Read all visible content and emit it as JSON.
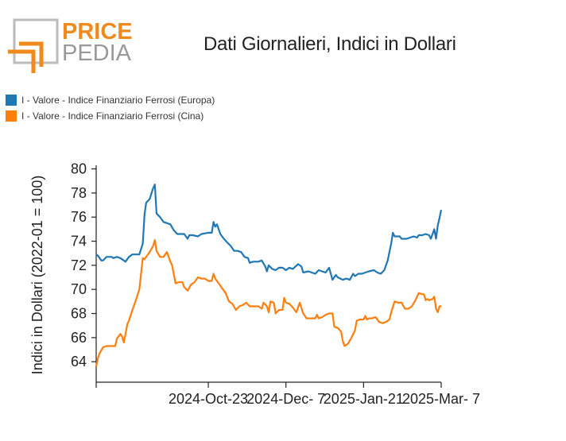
{
  "brand": {
    "top": "PRICE",
    "bottom": "PEDIA",
    "accent": "#f08a1c",
    "grey": "#999999"
  },
  "chart_data": {
    "type": "line",
    "title": "Dati Giornalieri, Indici in Dollari",
    "xlabel": "",
    "ylabel": "Indici in Dollari (2022-01 = 100)",
    "ylim": [
      62.3,
      80.3
    ],
    "yticks": [
      64,
      66,
      68,
      70,
      72,
      74,
      76,
      78,
      80
    ],
    "xlim": [
      "2024-08-19",
      "2025-03-07"
    ],
    "xticks": [
      {
        "date": "2024-10-23",
        "label": "2024-Oct-23"
      },
      {
        "date": "2024-12-07",
        "label": "2024-Dec- 7"
      },
      {
        "date": "2025-01-21",
        "label": "2025-Jan-21"
      },
      {
        "date": "2025-03-07",
        "label": "2025-Mar- 7"
      }
    ],
    "legend_position": "top-left",
    "series": [
      {
        "name": "I - Valore - Indice Finanziario Ferrosi (Europa)",
        "color": "#1f77b4",
        "points": [
          [
            "2024-08-19",
            72.9
          ],
          [
            "2024-08-20",
            72.8
          ],
          [
            "2024-08-22",
            72.4
          ],
          [
            "2024-08-23",
            72.4
          ],
          [
            "2024-08-25",
            72.7
          ],
          [
            "2024-08-28",
            72.7
          ],
          [
            "2024-08-29",
            72.6
          ],
          [
            "2024-08-31",
            72.7
          ],
          [
            "2024-09-02",
            72.6
          ],
          [
            "2024-09-05",
            72.3
          ],
          [
            "2024-09-07",
            72.7
          ],
          [
            "2024-09-09",
            72.9
          ],
          [
            "2024-09-13",
            72.9
          ],
          [
            "2024-09-15",
            73.8
          ],
          [
            "2024-09-16",
            76.2
          ],
          [
            "2024-09-17",
            77.2
          ],
          [
            "2024-09-19",
            77.5
          ],
          [
            "2024-09-21",
            78.4
          ],
          [
            "2024-09-22",
            78.7
          ],
          [
            "2024-09-23",
            76.3
          ],
          [
            "2024-09-25",
            76.0
          ],
          [
            "2024-09-27",
            75.6
          ],
          [
            "2024-09-29",
            75.5
          ],
          [
            "2024-10-01",
            75.4
          ],
          [
            "2024-10-03",
            74.9
          ],
          [
            "2024-10-05",
            74.6
          ],
          [
            "2024-10-07",
            74.6
          ],
          [
            "2024-10-09",
            74.6
          ],
          [
            "2024-10-11",
            74.2
          ],
          [
            "2024-10-12",
            74.5
          ],
          [
            "2024-10-14",
            74.5
          ],
          [
            "2024-10-17",
            74.4
          ],
          [
            "2024-10-19",
            74.6
          ],
          [
            "2024-10-23",
            74.7
          ],
          [
            "2024-10-25",
            74.7
          ],
          [
            "2024-10-26",
            75.6
          ],
          [
            "2024-10-27",
            75.2
          ],
          [
            "2024-10-28",
            75.4
          ],
          [
            "2024-10-30",
            74.6
          ],
          [
            "2024-11-01",
            74.2
          ],
          [
            "2024-11-03",
            73.9
          ],
          [
            "2024-11-05",
            73.6
          ],
          [
            "2024-11-07",
            73.2
          ],
          [
            "2024-11-09",
            73.2
          ],
          [
            "2024-11-11",
            73.1
          ],
          [
            "2024-11-13",
            72.7
          ],
          [
            "2024-11-15",
            72.6
          ],
          [
            "2024-11-16",
            72.2
          ],
          [
            "2024-11-18",
            72.3
          ],
          [
            "2024-11-21",
            72.3
          ],
          [
            "2024-11-23",
            72.4
          ],
          [
            "2024-11-25",
            71.9
          ],
          [
            "2024-11-26",
            71.5
          ],
          [
            "2024-11-27",
            72.0
          ],
          [
            "2024-11-29",
            71.7
          ],
          [
            "2024-12-01",
            71.6
          ],
          [
            "2024-12-03",
            71.8
          ],
          [
            "2024-12-05",
            71.8
          ],
          [
            "2024-12-07",
            71.6
          ],
          [
            "2024-12-09",
            71.8
          ],
          [
            "2024-12-11",
            71.7
          ],
          [
            "2024-12-14",
            72.1
          ],
          [
            "2024-12-16",
            71.9
          ],
          [
            "2024-12-17",
            71.4
          ],
          [
            "2024-12-20",
            71.5
          ],
          [
            "2024-12-22",
            71.4
          ],
          [
            "2024-12-24",
            71.3
          ],
          [
            "2024-12-26",
            71.6
          ],
          [
            "2024-12-28",
            71.5
          ],
          [
            "2024-12-30",
            71.4
          ],
          [
            "2025-01-01",
            71.8
          ],
          [
            "2025-01-03",
            70.8
          ],
          [
            "2025-01-05",
            71.2
          ],
          [
            "2025-01-06",
            71.0
          ],
          [
            "2025-01-09",
            70.8
          ],
          [
            "2025-01-11",
            70.9
          ],
          [
            "2025-01-13",
            70.8
          ],
          [
            "2025-01-15",
            71.3
          ],
          [
            "2025-01-16",
            71.1
          ],
          [
            "2025-01-18",
            71.3
          ],
          [
            "2025-01-20",
            71.3
          ],
          [
            "2025-01-22",
            71.4
          ],
          [
            "2025-01-24",
            71.5
          ],
          [
            "2025-01-27",
            71.6
          ],
          [
            "2025-01-29",
            71.4
          ],
          [
            "2025-01-31",
            71.3
          ],
          [
            "2025-02-02",
            71.6
          ],
          [
            "2025-02-04",
            72.4
          ],
          [
            "2025-02-06",
            73.8
          ],
          [
            "2025-02-07",
            74.7
          ],
          [
            "2025-02-08",
            74.4
          ],
          [
            "2025-02-11",
            74.4
          ],
          [
            "2025-02-12",
            74.2
          ],
          [
            "2025-02-15",
            74.2
          ],
          [
            "2025-02-17",
            74.3
          ],
          [
            "2025-02-19",
            74.4
          ],
          [
            "2025-02-21",
            74.3
          ],
          [
            "2025-02-22",
            74.5
          ],
          [
            "2025-02-24",
            74.5
          ],
          [
            "2025-02-26",
            74.6
          ],
          [
            "2025-02-28",
            74.5
          ],
          [
            "2025-03-01",
            74.2
          ],
          [
            "2025-03-03",
            75.0
          ],
          [
            "2025-03-04",
            74.2
          ],
          [
            "2025-03-05",
            75.3
          ],
          [
            "2025-03-06",
            75.9
          ],
          [
            "2025-03-07",
            76.6
          ]
        ]
      },
      {
        "name": "I - Valore - Indice Finanziario Ferrosi (Cina)",
        "color": "#ff7f0e",
        "points": [
          [
            "2024-08-19",
            63.6
          ],
          [
            "2024-08-20",
            64.3
          ],
          [
            "2024-08-21",
            64.7
          ],
          [
            "2024-08-23",
            65.2
          ],
          [
            "2024-08-25",
            65.3
          ],
          [
            "2024-08-28",
            65.3
          ],
          [
            "2024-08-30",
            65.3
          ],
          [
            "2024-08-31",
            65.9
          ],
          [
            "2024-09-02",
            66.3
          ],
          [
            "2024-09-03",
            66.1
          ],
          [
            "2024-09-04",
            65.6
          ],
          [
            "2024-09-05",
            66.3
          ],
          [
            "2024-09-06",
            67.1
          ],
          [
            "2024-09-07",
            67.4
          ],
          [
            "2024-09-09",
            68.3
          ],
          [
            "2024-09-11",
            69.1
          ],
          [
            "2024-09-13",
            70.0
          ],
          [
            "2024-09-15",
            72.6
          ],
          [
            "2024-09-16",
            72.5
          ],
          [
            "2024-09-17",
            72.7
          ],
          [
            "2024-09-19",
            73.1
          ],
          [
            "2024-09-21",
            73.6
          ],
          [
            "2024-09-22",
            74.1
          ],
          [
            "2024-09-23",
            73.2
          ],
          [
            "2024-09-25",
            72.7
          ],
          [
            "2024-09-27",
            72.7
          ],
          [
            "2024-09-29",
            73.1
          ],
          [
            "2024-10-01",
            72.3
          ],
          [
            "2024-10-02",
            72.0
          ],
          [
            "2024-10-04",
            70.5
          ],
          [
            "2024-10-06",
            70.6
          ],
          [
            "2024-10-08",
            70.6
          ],
          [
            "2024-10-09",
            70.2
          ],
          [
            "2024-10-11",
            69.9
          ],
          [
            "2024-10-13",
            70.4
          ],
          [
            "2024-10-15",
            70.6
          ],
          [
            "2024-10-17",
            71.0
          ],
          [
            "2024-10-19",
            70.9
          ],
          [
            "2024-10-21",
            70.9
          ],
          [
            "2024-10-23",
            70.7
          ],
          [
            "2024-10-25",
            70.7
          ],
          [
            "2024-10-26",
            71.3
          ],
          [
            "2024-10-27",
            70.9
          ],
          [
            "2024-10-29",
            70.5
          ],
          [
            "2024-10-31",
            70.1
          ],
          [
            "2024-11-02",
            69.7
          ],
          [
            "2024-11-04",
            69.0
          ],
          [
            "2024-11-06",
            68.8
          ],
          [
            "2024-11-08",
            68.3
          ],
          [
            "2024-11-10",
            68.6
          ],
          [
            "2024-11-12",
            68.7
          ],
          [
            "2024-11-14",
            68.9
          ],
          [
            "2024-11-16",
            68.6
          ],
          [
            "2024-11-18",
            68.6
          ],
          [
            "2024-11-21",
            68.6
          ],
          [
            "2024-11-23",
            68.4
          ],
          [
            "2024-11-24",
            68.9
          ],
          [
            "2024-11-26",
            68.6
          ],
          [
            "2024-11-27",
            68.1
          ],
          [
            "2024-11-28",
            69.0
          ],
          [
            "2024-11-30",
            68.9
          ],
          [
            "2024-12-01",
            68.0
          ],
          [
            "2024-12-03",
            68.3
          ],
          [
            "2024-12-05",
            68.3
          ],
          [
            "2024-12-06",
            69.3
          ],
          [
            "2024-12-07",
            68.9
          ],
          [
            "2024-12-09",
            68.8
          ],
          [
            "2024-12-11",
            68.5
          ],
          [
            "2024-12-13",
            68.1
          ],
          [
            "2024-12-15",
            68.9
          ],
          [
            "2024-12-17",
            68.0
          ],
          [
            "2024-12-19",
            67.6
          ],
          [
            "2024-12-21",
            67.6
          ],
          [
            "2024-12-24",
            67.6
          ],
          [
            "2024-12-25",
            67.9
          ],
          [
            "2024-12-26",
            67.6
          ],
          [
            "2024-12-28",
            67.7
          ],
          [
            "2024-12-30",
            67.9
          ],
          [
            "2025-01-01",
            68.0
          ],
          [
            "2025-01-03",
            68.0
          ],
          [
            "2025-01-04",
            66.9
          ],
          [
            "2025-01-06",
            66.8
          ],
          [
            "2025-01-08",
            66.5
          ],
          [
            "2025-01-09",
            65.7
          ],
          [
            "2025-01-10",
            65.3
          ],
          [
            "2025-01-12",
            65.5
          ],
          [
            "2025-01-14",
            66.0
          ],
          [
            "2025-01-16",
            66.6
          ],
          [
            "2025-01-17",
            67.4
          ],
          [
            "2025-01-19",
            67.5
          ],
          [
            "2025-01-21",
            67.5
          ],
          [
            "2025-01-22",
            67.8
          ],
          [
            "2025-01-23",
            67.5
          ],
          [
            "2025-01-24",
            67.6
          ],
          [
            "2025-01-26",
            67.6
          ],
          [
            "2025-01-28",
            67.7
          ],
          [
            "2025-01-30",
            67.3
          ],
          [
            "2025-02-01",
            67.2
          ],
          [
            "2025-02-03",
            67.3
          ],
          [
            "2025-02-05",
            67.5
          ],
          [
            "2025-02-06",
            68.1
          ],
          [
            "2025-02-08",
            69.0
          ],
          [
            "2025-02-10",
            68.9
          ],
          [
            "2025-02-12",
            68.9
          ],
          [
            "2025-02-14",
            68.4
          ],
          [
            "2025-02-16",
            68.4
          ],
          [
            "2025-02-18",
            68.6
          ],
          [
            "2025-02-20",
            69.1
          ],
          [
            "2025-02-22",
            69.7
          ],
          [
            "2025-02-24",
            69.6
          ],
          [
            "2025-02-25",
            69.6
          ],
          [
            "2025-02-26",
            69.1
          ],
          [
            "2025-02-27",
            69.2
          ],
          [
            "2025-02-28",
            69.1
          ],
          [
            "2025-03-02",
            69.2
          ],
          [
            "2025-03-03",
            69.4
          ],
          [
            "2025-03-04",
            68.4
          ],
          [
            "2025-03-05",
            68.1
          ],
          [
            "2025-03-06",
            68.6
          ],
          [
            "2025-03-07",
            68.6
          ]
        ]
      }
    ]
  }
}
